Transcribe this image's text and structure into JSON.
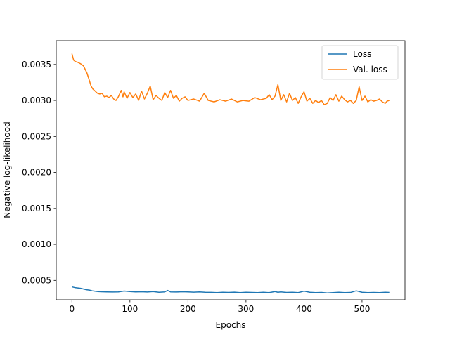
{
  "chart_data": {
    "type": "line",
    "title": "",
    "xlabel": "Epochs",
    "ylabel": "Negative log-likelihood",
    "xlim": [
      -27,
      574
    ],
    "ylim": [
      0.00023,
      0.00383
    ],
    "xticks": [
      0,
      100,
      200,
      300,
      400,
      500
    ],
    "xtick_labels": [
      "0",
      "100",
      "200",
      "300",
      "400",
      "500"
    ],
    "yticks": [
      0.0005,
      0.001,
      0.0015,
      0.002,
      0.0025,
      0.003,
      0.0035
    ],
    "ytick_labels": [
      "0.0005",
      "0.0010",
      "0.0015",
      "0.0020",
      "0.0025",
      "0.0030",
      "0.0035"
    ],
    "grid": false,
    "legend_position": "top-right",
    "series": [
      {
        "name": "Loss",
        "color": "#1f77b4",
        "points": [
          [
            0,
            0.00041
          ],
          [
            5,
            0.0004
          ],
          [
            10,
            0.000395
          ],
          [
            15,
            0.00039
          ],
          [
            20,
            0.00038
          ],
          [
            25,
            0.00037
          ],
          [
            30,
            0.000365
          ],
          [
            35,
            0.000355
          ],
          [
            40,
            0.00035
          ],
          [
            45,
            0.000345
          ],
          [
            50,
            0.000342
          ],
          [
            60,
            0.00034
          ],
          [
            70,
            0.000338
          ],
          [
            80,
            0.00034
          ],
          [
            90,
            0.000352
          ],
          [
            100,
            0.000345
          ],
          [
            110,
            0.00034
          ],
          [
            120,
            0.000342
          ],
          [
            130,
            0.000338
          ],
          [
            140,
            0.000345
          ],
          [
            150,
            0.000335
          ],
          [
            160,
            0.00034
          ],
          [
            165,
            0.00036
          ],
          [
            170,
            0.00034
          ],
          [
            180,
            0.000338
          ],
          [
            190,
            0.000342
          ],
          [
            200,
            0.00034
          ],
          [
            210,
            0.000336
          ],
          [
            220,
            0.00034
          ],
          [
            230,
            0.000335
          ],
          [
            240,
            0.000334
          ],
          [
            250,
            0.00033
          ],
          [
            260,
            0.000335
          ],
          [
            270,
            0.000332
          ],
          [
            280,
            0.000336
          ],
          [
            290,
            0.00033
          ],
          [
            300,
            0.000335
          ],
          [
            310,
            0.000332
          ],
          [
            320,
            0.00033
          ],
          [
            330,
            0.000335
          ],
          [
            340,
            0.00033
          ],
          [
            350,
            0.000345
          ],
          [
            355,
            0.000335
          ],
          [
            360,
            0.00034
          ],
          [
            370,
            0.000332
          ],
          [
            380,
            0.000335
          ],
          [
            390,
            0.00033
          ],
          [
            400,
            0.00035
          ],
          [
            410,
            0.000335
          ],
          [
            420,
            0.00033
          ],
          [
            430,
            0.000332
          ],
          [
            440,
            0.000325
          ],
          [
            450,
            0.00033
          ],
          [
            460,
            0.000335
          ],
          [
            470,
            0.00033
          ],
          [
            480,
            0.000332
          ],
          [
            490,
            0.000355
          ],
          [
            500,
            0.000335
          ],
          [
            510,
            0.00033
          ],
          [
            520,
            0.000332
          ],
          [
            530,
            0.00033
          ],
          [
            540,
            0.000335
          ],
          [
            547,
            0.000332
          ]
        ]
      },
      {
        "name": "Val. loss",
        "color": "#ff7f0e",
        "points": [
          [
            0,
            0.00365
          ],
          [
            3,
            0.00356
          ],
          [
            6,
            0.00354
          ],
          [
            10,
            0.00353
          ],
          [
            15,
            0.00351
          ],
          [
            20,
            0.00348
          ],
          [
            23,
            0.00343
          ],
          [
            26,
            0.00338
          ],
          [
            30,
            0.00328
          ],
          [
            33,
            0.0032
          ],
          [
            36,
            0.00316
          ],
          [
            40,
            0.00313
          ],
          [
            44,
            0.0031
          ],
          [
            48,
            0.00309
          ],
          [
            52,
            0.0031
          ],
          [
            56,
            0.00305
          ],
          [
            60,
            0.00306
          ],
          [
            64,
            0.00304
          ],
          [
            68,
            0.00307
          ],
          [
            72,
            0.00302
          ],
          [
            76,
            0.003
          ],
          [
            80,
            0.00305
          ],
          [
            85,
            0.00314
          ],
          [
            88,
            0.00305
          ],
          [
            90,
            0.00312
          ],
          [
            95,
            0.00303
          ],
          [
            100,
            0.00311
          ],
          [
            105,
            0.00304
          ],
          [
            110,
            0.00309
          ],
          [
            115,
            0.003
          ],
          [
            120,
            0.00313
          ],
          [
            125,
            0.00302
          ],
          [
            130,
            0.0031
          ],
          [
            135,
            0.0032
          ],
          [
            140,
            0.00301
          ],
          [
            145,
            0.00307
          ],
          [
            150,
            0.00303
          ],
          [
            155,
            0.003
          ],
          [
            160,
            0.00311
          ],
          [
            165,
            0.00304
          ],
          [
            170,
            0.00314
          ],
          [
            175,
            0.00303
          ],
          [
            180,
            0.00307
          ],
          [
            185,
            0.00299
          ],
          [
            190,
            0.00303
          ],
          [
            195,
            0.00305
          ],
          [
            200,
            0.003
          ],
          [
            210,
            0.00302
          ],
          [
            220,
            0.00299
          ],
          [
            228,
            0.0031
          ],
          [
            235,
            0.003
          ],
          [
            245,
            0.00298
          ],
          [
            255,
            0.00301
          ],
          [
            265,
            0.00299
          ],
          [
            275,
            0.00302
          ],
          [
            285,
            0.00298
          ],
          [
            295,
            0.003
          ],
          [
            305,
            0.00299
          ],
          [
            315,
            0.00304
          ],
          [
            325,
            0.00301
          ],
          [
            335,
            0.00303
          ],
          [
            340,
            0.00308
          ],
          [
            345,
            0.00301
          ],
          [
            350,
            0.00306
          ],
          [
            355,
            0.00322
          ],
          [
            360,
            0.003
          ],
          [
            365,
            0.00308
          ],
          [
            370,
            0.00298
          ],
          [
            375,
            0.0031
          ],
          [
            380,
            0.003
          ],
          [
            385,
            0.00304
          ],
          [
            390,
            0.00296
          ],
          [
            395,
            0.00305
          ],
          [
            400,
            0.00312
          ],
          [
            405,
            0.00299
          ],
          [
            410,
            0.00303
          ],
          [
            415,
            0.00296
          ],
          [
            420,
            0.003
          ],
          [
            425,
            0.00297
          ],
          [
            430,
            0.003
          ],
          [
            435,
            0.00294
          ],
          [
            440,
            0.00296
          ],
          [
            445,
            0.00304
          ],
          [
            450,
            0.003
          ],
          [
            455,
            0.00308
          ],
          [
            460,
            0.00299
          ],
          [
            465,
            0.00306
          ],
          [
            470,
            0.00301
          ],
          [
            475,
            0.00298
          ],
          [
            480,
            0.003
          ],
          [
            485,
            0.00296
          ],
          [
            490,
            0.003
          ],
          [
            495,
            0.00319
          ],
          [
            500,
            0.003
          ],
          [
            505,
            0.00306
          ],
          [
            510,
            0.00298
          ],
          [
            515,
            0.00301
          ],
          [
            520,
            0.00299
          ],
          [
            525,
            0.003
          ],
          [
            530,
            0.00302
          ],
          [
            535,
            0.00298
          ],
          [
            540,
            0.00296
          ],
          [
            543,
            0.00299
          ],
          [
            547,
            0.003
          ]
        ]
      }
    ]
  }
}
